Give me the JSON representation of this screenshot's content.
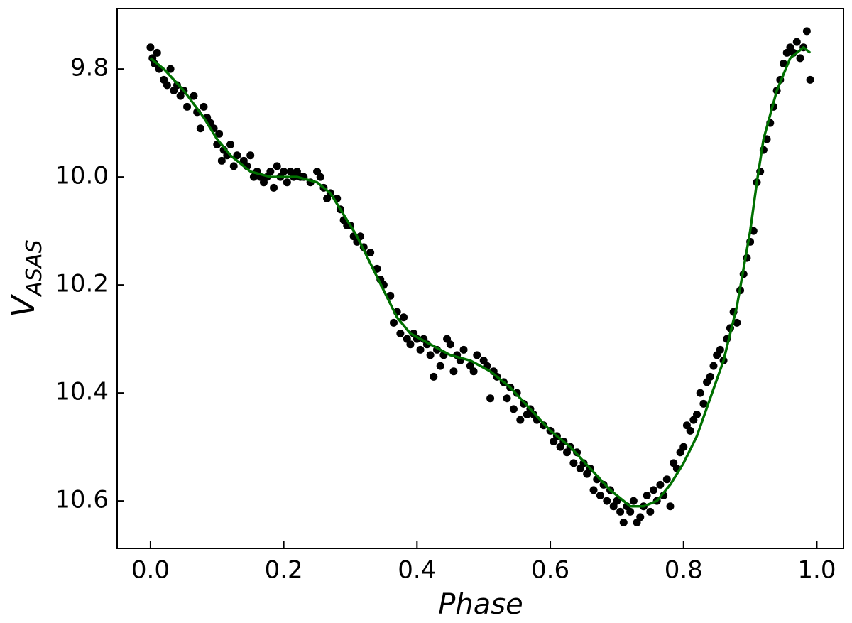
{
  "chart_data": {
    "type": "scatter-fit",
    "xlabel": "Phase",
    "ylabel": "V",
    "ylabel_subscript": "ASAS",
    "xlim": [
      -0.05,
      1.04
    ],
    "ylim": [
      10.688,
      9.688
    ],
    "xticks": [
      {
        "value": 0,
        "label": "0.0"
      },
      0.2,
      0.4,
      0.6,
      0.8,
      {
        "value": 1,
        "label": "1.0"
      }
    ],
    "yticks": [
      9.8,
      {
        "value": 10,
        "label": "10.0"
      },
      10.2,
      10.4,
      10.6
    ],
    "points": {
      "color": "#000000",
      "x": [
        0.0,
        0.003,
        0.006,
        0.01,
        0.013,
        0.02,
        0.025,
        0.03,
        0.035,
        0.04,
        0.045,
        0.05,
        0.055,
        0.065,
        0.07,
        0.075,
        0.08,
        0.085,
        0.09,
        0.095,
        0.1,
        0.103,
        0.107,
        0.11,
        0.115,
        0.12,
        0.125,
        0.13,
        0.14,
        0.145,
        0.15,
        0.155,
        0.16,
        0.165,
        0.17,
        0.175,
        0.18,
        0.185,
        0.19,
        0.195,
        0.2,
        0.205,
        0.21,
        0.215,
        0.22,
        0.225,
        0.23,
        0.24,
        0.25,
        0.255,
        0.26,
        0.265,
        0.27,
        0.28,
        0.285,
        0.29,
        0.295,
        0.3,
        0.305,
        0.31,
        0.315,
        0.32,
        0.33,
        0.34,
        0.345,
        0.35,
        0.36,
        0.365,
        0.37,
        0.375,
        0.38,
        0.385,
        0.39,
        0.395,
        0.4,
        0.405,
        0.41,
        0.415,
        0.42,
        0.425,
        0.43,
        0.435,
        0.44,
        0.445,
        0.45,
        0.455,
        0.46,
        0.465,
        0.47,
        0.48,
        0.485,
        0.49,
        0.5,
        0.505,
        0.51,
        0.515,
        0.52,
        0.53,
        0.535,
        0.54,
        0.545,
        0.55,
        0.555,
        0.56,
        0.565,
        0.57,
        0.575,
        0.58,
        0.59,
        0.6,
        0.605,
        0.61,
        0.615,
        0.62,
        0.625,
        0.63,
        0.635,
        0.64,
        0.645,
        0.65,
        0.655,
        0.66,
        0.665,
        0.67,
        0.675,
        0.68,
        0.685,
        0.69,
        0.695,
        0.7,
        0.705,
        0.71,
        0.715,
        0.72,
        0.725,
        0.73,
        0.735,
        0.74,
        0.745,
        0.75,
        0.755,
        0.76,
        0.765,
        0.77,
        0.775,
        0.78,
        0.785,
        0.79,
        0.795,
        0.8,
        0.805,
        0.81,
        0.815,
        0.82,
        0.825,
        0.83,
        0.835,
        0.84,
        0.845,
        0.85,
        0.855,
        0.86,
        0.865,
        0.87,
        0.875,
        0.88,
        0.885,
        0.89,
        0.895,
        0.9,
        0.905,
        0.91,
        0.915,
        0.92,
        0.925,
        0.93,
        0.935,
        0.94,
        0.945,
        0.95,
        0.955,
        0.96,
        0.965,
        0.97,
        0.975,
        0.98,
        0.985,
        0.99
      ],
      "y": [
        9.76,
        9.78,
        9.79,
        9.77,
        9.8,
        9.82,
        9.83,
        9.8,
        9.84,
        9.83,
        9.85,
        9.84,
        9.87,
        9.85,
        9.88,
        9.91,
        9.87,
        9.89,
        9.9,
        9.91,
        9.94,
        9.92,
        9.97,
        9.95,
        9.96,
        9.94,
        9.98,
        9.96,
        9.97,
        9.98,
        9.96,
        10.0,
        9.99,
        10.0,
        10.01,
        10.0,
        9.99,
        10.02,
        9.98,
        10.0,
        9.99,
        10.01,
        9.99,
        10.0,
        9.99,
        10.0,
        10.0,
        10.01,
        9.99,
        10.0,
        10.02,
        10.04,
        10.03,
        10.04,
        10.06,
        10.08,
        10.09,
        10.09,
        10.11,
        10.12,
        10.11,
        10.13,
        10.14,
        10.17,
        10.19,
        10.2,
        10.22,
        10.27,
        10.25,
        10.29,
        10.26,
        10.3,
        10.31,
        10.29,
        10.3,
        10.32,
        10.3,
        10.31,
        10.33,
        10.37,
        10.32,
        10.35,
        10.33,
        10.3,
        10.31,
        10.36,
        10.33,
        10.34,
        10.32,
        10.35,
        10.36,
        10.33,
        10.34,
        10.35,
        10.41,
        10.36,
        10.37,
        10.38,
        10.41,
        10.39,
        10.43,
        10.4,
        10.45,
        10.42,
        10.44,
        10.43,
        10.44,
        10.45,
        10.46,
        10.47,
        10.49,
        10.48,
        10.5,
        10.49,
        10.51,
        10.5,
        10.53,
        10.51,
        10.54,
        10.53,
        10.55,
        10.54,
        10.58,
        10.56,
        10.59,
        10.57,
        10.6,
        10.58,
        10.61,
        10.6,
        10.62,
        10.64,
        10.61,
        10.62,
        10.6,
        10.64,
        10.63,
        10.61,
        10.59,
        10.62,
        10.58,
        10.6,
        10.57,
        10.59,
        10.56,
        10.61,
        10.53,
        10.54,
        10.51,
        10.5,
        10.46,
        10.47,
        10.45,
        10.44,
        10.4,
        10.42,
        10.38,
        10.37,
        10.35,
        10.33,
        10.32,
        10.34,
        10.3,
        10.28,
        10.25,
        10.27,
        10.21,
        10.18,
        10.15,
        10.12,
        10.1,
        10.01,
        9.99,
        9.95,
        9.93,
        9.9,
        9.87,
        9.84,
        9.82,
        9.79,
        9.77,
        9.76,
        9.77,
        9.75,
        9.78,
        9.76,
        9.73,
        9.82
      ]
    },
    "fit": {
      "color": "#007000",
      "x": [
        0.0,
        0.02,
        0.05,
        0.08,
        0.1,
        0.12,
        0.15,
        0.18,
        0.22,
        0.25,
        0.27,
        0.29,
        0.31,
        0.33,
        0.35,
        0.37,
        0.39,
        0.42,
        0.45,
        0.48,
        0.51,
        0.54,
        0.57,
        0.6,
        0.63,
        0.66,
        0.69,
        0.72,
        0.74,
        0.76,
        0.78,
        0.8,
        0.82,
        0.84,
        0.86,
        0.88,
        0.9,
        0.91,
        0.92,
        0.94,
        0.96,
        0.98,
        0.99
      ],
      "y": [
        9.78,
        9.8,
        9.84,
        9.89,
        9.93,
        9.96,
        9.99,
        10.0,
        10.0,
        10.01,
        10.03,
        10.07,
        10.11,
        10.16,
        10.21,
        10.26,
        10.29,
        10.31,
        10.33,
        10.34,
        10.36,
        10.39,
        10.43,
        10.47,
        10.5,
        10.54,
        10.58,
        10.61,
        10.61,
        10.6,
        10.57,
        10.53,
        10.48,
        10.41,
        10.34,
        10.24,
        10.1,
        10.01,
        9.93,
        9.84,
        9.78,
        9.76,
        9.77
      ]
    }
  }
}
